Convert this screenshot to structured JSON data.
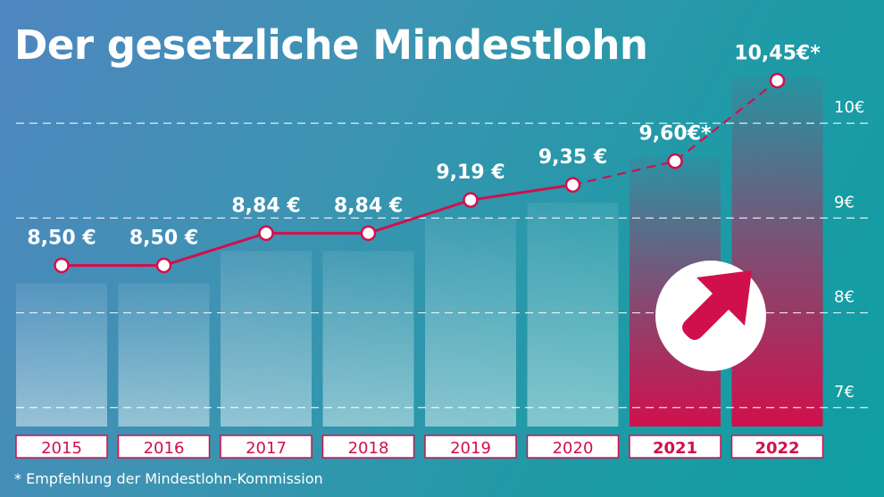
{
  "title": "Der gesetzliche Mindestlohn",
  "footnote": "* Empfehlung der Mindestlohn-Kommission",
  "colors": {
    "line": "#d0104c",
    "highlight_bar": "#d0104c",
    "arrow": "#d0104c",
    "text": "#ffffff"
  },
  "chart_data": {
    "type": "bar",
    "title": "Der gesetzliche Mindestlohn",
    "categories": [
      "2015",
      "2016",
      "2017",
      "2018",
      "2019",
      "2020",
      "2021",
      "2022"
    ],
    "values": [
      8.5,
      8.5,
      8.84,
      8.84,
      9.19,
      9.35,
      9.6,
      10.45
    ],
    "data_labels": [
      "8,50 €",
      "8,50 €",
      "8,84 €",
      "8,84 €",
      "9,19 €",
      "9,35 €",
      "9,60€*",
      "10,45€*"
    ],
    "highlighted": [
      "2021",
      "2022"
    ],
    "projected": [
      "2021",
      "2022"
    ],
    "ylim": [
      6.8,
      10.4
    ],
    "yticks": [
      7,
      8,
      9,
      10
    ],
    "ytick_labels": [
      "7€",
      "8€",
      "9€",
      "10€"
    ],
    "grid": true,
    "xlabel": "",
    "ylabel": ""
  }
}
